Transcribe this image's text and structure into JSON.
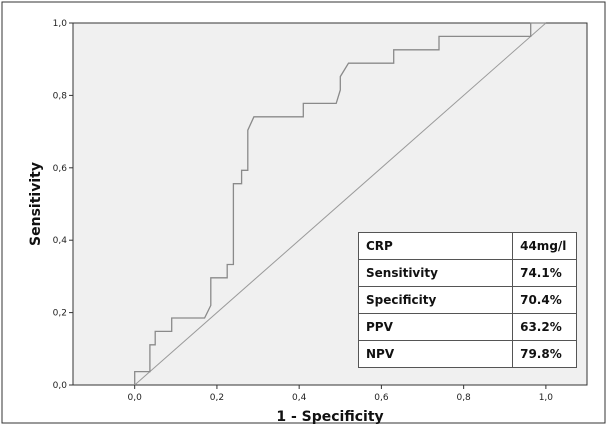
{
  "chart_data": {
    "type": "line",
    "xlabel": "1 - Specificity",
    "ylabel": "Sensitivity",
    "xlim": [
      -0.15,
      1.1
    ],
    "ylim": [
      0,
      1
    ],
    "x_ticks": [
      "0,0",
      "0,2",
      "0,4",
      "0,6",
      "0,8",
      "1,0"
    ],
    "y_ticks": [
      "0,0",
      "0,2",
      "0,4",
      "0,6",
      "0,8",
      "1,0"
    ],
    "grid": false,
    "colors": {
      "plot_background": "#f0f0f0",
      "curve": "#8a8a8a",
      "reference_line": "#9a9a9a",
      "frame": "#333333"
    },
    "series": [
      {
        "points": [
          [
            0.0,
            0.0
          ],
          [
            0.0,
            0.037
          ],
          [
            0.037,
            0.037
          ],
          [
            0.037,
            0.111
          ],
          [
            0.05,
            0.111
          ],
          [
            0.05,
            0.148
          ],
          [
            0.09,
            0.148
          ],
          [
            0.09,
            0.185
          ],
          [
            0.17,
            0.185
          ],
          [
            0.185,
            0.22
          ],
          [
            0.185,
            0.296
          ],
          [
            0.225,
            0.296
          ],
          [
            0.225,
            0.333
          ],
          [
            0.24,
            0.333
          ],
          [
            0.24,
            0.556
          ],
          [
            0.26,
            0.556
          ],
          [
            0.26,
            0.593
          ],
          [
            0.275,
            0.593
          ],
          [
            0.275,
            0.704
          ],
          [
            0.29,
            0.741
          ],
          [
            0.41,
            0.741
          ],
          [
            0.41,
            0.778
          ],
          [
            0.49,
            0.778
          ],
          [
            0.5,
            0.815
          ],
          [
            0.5,
            0.852
          ],
          [
            0.52,
            0.889
          ],
          [
            0.63,
            0.889
          ],
          [
            0.63,
            0.926
          ],
          [
            0.74,
            0.926
          ],
          [
            0.74,
            0.963
          ],
          [
            0.963,
            0.963
          ],
          [
            0.963,
            1.0
          ],
          [
            1.0,
            1.0
          ]
        ]
      },
      {
        "points": [
          [
            0,
            0
          ],
          [
            1,
            1
          ]
        ]
      }
    ]
  },
  "table": {
    "rows": [
      {
        "label": "CRP",
        "value": "44mg/l"
      },
      {
        "label": "Sensitivity",
        "value": "74.1%"
      },
      {
        "label": "Specificity",
        "value": "70.4%"
      },
      {
        "label": "PPV",
        "value": "63.2%"
      },
      {
        "label": "NPV",
        "value": "79.8%"
      }
    ]
  }
}
